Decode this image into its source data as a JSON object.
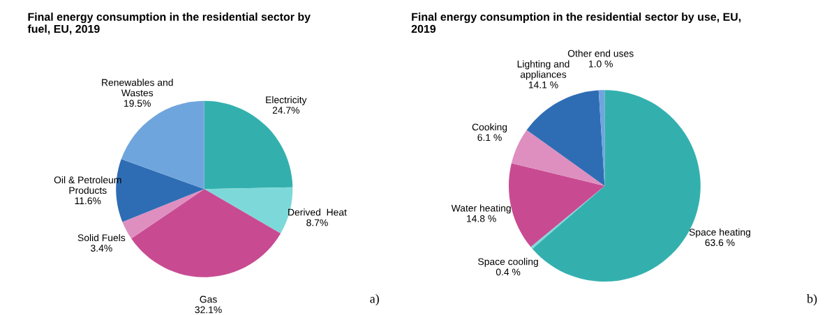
{
  "chart_data": [
    {
      "type": "pie",
      "title": "Final energy consumption in the residential sector by\nfuel, EU, 2019",
      "categories": [
        "Electricity",
        "Derived  Heat",
        "Gas",
        "Solid Fuels",
        "Oil & Petroleum\nProducts",
        "Renewables and\nWastes"
      ],
      "values": [
        24.7,
        8.7,
        32.1,
        3.4,
        11.6,
        19.5
      ],
      "value_labels": [
        "24.7%",
        "8.7%",
        "32.1%",
        "3.4%",
        "11.6%",
        "19.5%"
      ],
      "colors": [
        "#33b0ae",
        "#7dd9d9",
        "#c84b92",
        "#de8fc0",
        "#2e6db4",
        "#6fa5dd"
      ],
      "annotations": [
        "a)"
      ]
    },
    {
      "type": "pie",
      "title": "Final energy consumption in the residential sector by use, EU,\n2019",
      "categories": [
        "Space heating",
        "Space cooling",
        "Water heating",
        "Cooking",
        "Lighting and\nappliances",
        "Other end uses"
      ],
      "values": [
        63.6,
        0.4,
        14.8,
        6.1,
        14.1,
        1.0
      ],
      "value_labels": [
        "63.6 %",
        "0.4 %",
        "14.8 %",
        "6.1 %",
        "14.1 %",
        "1.0 %"
      ],
      "colors": [
        "#33b0ae",
        "#7dd9d9",
        "#c84b92",
        "#de8fc0",
        "#2e6db4",
        "#6fa5dd"
      ],
      "annotations": [
        "b)"
      ]
    }
  ]
}
